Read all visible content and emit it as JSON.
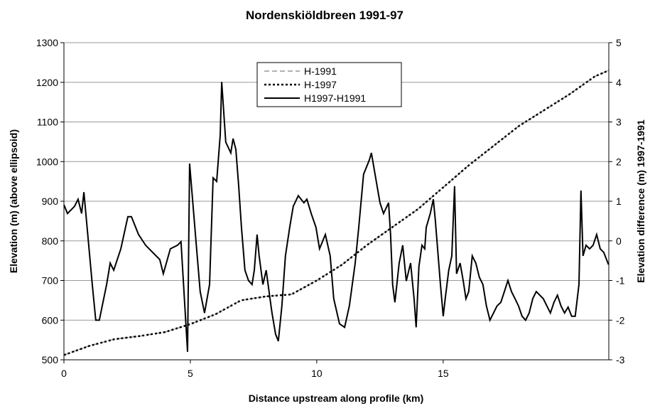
{
  "chart_data": {
    "type": "line",
    "title": "Nordenskiöldbreen 1991-97",
    "x_label": "Distance upstream along profile (km)",
    "y_label": "Elevation (m) (above ellipsoid)",
    "y2_label": "Elevation difference (m) 1997-1991",
    "xlim": [
      0,
      21.55
    ],
    "xticks": [
      0,
      5,
      10,
      15
    ],
    "ylim": [
      500,
      1300
    ],
    "yticks": [
      500,
      600,
      700,
      800,
      900,
      1000,
      1100,
      1200,
      1300
    ],
    "y2lim": [
      -3,
      5
    ],
    "y2ticks": [
      -3,
      -2,
      -1,
      0,
      1,
      2,
      3,
      4,
      5
    ],
    "grid": true,
    "legend": "top-center",
    "series": [
      {
        "name": "H-1991",
        "color": "#999999",
        "dash": "7,4",
        "x": [
          0,
          1,
          2,
          3,
          4,
          5,
          6,
          7,
          8,
          9,
          10,
          11,
          12,
          13,
          14,
          15,
          16,
          17,
          18,
          19,
          20,
          21,
          21.55
        ],
        "values": [
          512,
          535,
          552,
          560,
          570,
          590,
          615,
          650,
          660,
          665,
          700,
          740,
          790,
          835,
          880,
          935,
          990,
          1040,
          1090,
          1130,
          1170,
          1215,
          1230
        ]
      },
      {
        "name": "H-1997",
        "color": "#000000",
        "dash": "3,3",
        "x": [
          0,
          1,
          2,
          3,
          4,
          5,
          6,
          7,
          8,
          9,
          10,
          11,
          12,
          13,
          14,
          15,
          16,
          17,
          18,
          19,
          20,
          21,
          21.55
        ],
        "values": [
          512,
          535,
          552,
          560,
          570,
          590,
          615,
          650,
          660,
          665,
          700,
          740,
          790,
          835,
          880,
          935,
          990,
          1040,
          1090,
          1130,
          1170,
          1215,
          1230
        ]
      },
      {
        "name": "H1997-H1991",
        "color": "#000000",
        "axis": "y2",
        "x": [
          0,
          0.14,
          0.42,
          0.56,
          0.7,
          0.79,
          0.98,
          1.12,
          1.26,
          1.4,
          1.69,
          1.83,
          1.97,
          2.25,
          2.53,
          2.67,
          2.95,
          3.23,
          3.51,
          3.79,
          3.93,
          4.21,
          4.49,
          4.63,
          4.89,
          4.97,
          5.2,
          5.39,
          5.56,
          5.76,
          5.9,
          6.04,
          6.18,
          6.24,
          6.4,
          6.6,
          6.69,
          6.8,
          6.91,
          7.02,
          7.16,
          7.3,
          7.44,
          7.53,
          7.64,
          7.72,
          7.87,
          8.0,
          8.15,
          8.23,
          8.37,
          8.48,
          8.62,
          8.76,
          8.93,
          9.07,
          9.27,
          9.49,
          9.61,
          9.78,
          9.97,
          10.11,
          10.34,
          10.53,
          10.67,
          10.9,
          11.1,
          11.29,
          11.52,
          11.66,
          11.85,
          12.08,
          12.16,
          12.28,
          12.5,
          12.64,
          12.84,
          12.92,
          13.0,
          13.09,
          13.26,
          13.4,
          13.54,
          13.71,
          13.85,
          13.93,
          14.04,
          14.16,
          14.27,
          14.33,
          14.49,
          14.61,
          14.69,
          14.8,
          14.89,
          15.0,
          15.08,
          15.22,
          15.34,
          15.45,
          15.53,
          15.67,
          15.79,
          15.9,
          16.01,
          16.15,
          16.29,
          16.43,
          16.57,
          16.71,
          16.85,
          16.99,
          17.13,
          17.28,
          17.42,
          17.56,
          17.7,
          17.84,
          17.98,
          18.12,
          18.26,
          18.4,
          18.54,
          18.68,
          18.82,
          18.96,
          19.1,
          19.24,
          19.38,
          19.52,
          19.66,
          19.8,
          19.94,
          20.08,
          20.22,
          20.37,
          20.45,
          20.53,
          20.65,
          20.79,
          20.93,
          21.07,
          21.21,
          21.35,
          21.54
        ],
        "values": [
          0.91,
          0.69,
          0.87,
          1.05,
          0.69,
          1.23,
          -0.11,
          -1.1,
          -2.0,
          -2.0,
          -1.1,
          -0.56,
          -0.74,
          -0.2,
          0.61,
          0.61,
          0.16,
          -0.11,
          -0.29,
          -0.47,
          -0.83,
          -0.2,
          -0.11,
          -0.02,
          -2.8,
          1.95,
          0.16,
          -1.28,
          -1.82,
          -1.1,
          1.59,
          1.5,
          2.67,
          4.01,
          2.49,
          2.22,
          2.58,
          2.31,
          1.41,
          0.34,
          -0.74,
          -1.0,
          -1.1,
          -0.74,
          0.16,
          -0.38,
          -1.1,
          -0.74,
          -1.46,
          -1.82,
          -2.35,
          -2.53,
          -1.64,
          -0.38,
          0.34,
          0.87,
          1.14,
          0.96,
          1.05,
          0.69,
          0.34,
          -0.2,
          0.16,
          -0.38,
          -1.46,
          -2.09,
          -2.18,
          -1.64,
          -0.56,
          0.34,
          1.68,
          2.04,
          2.22,
          1.77,
          0.96,
          0.69,
          0.96,
          0.16,
          -1.1,
          -1.55,
          -0.56,
          -0.11,
          -1.01,
          -0.56,
          -1.46,
          -2.18,
          -0.65,
          -0.11,
          -0.2,
          0.34,
          0.69,
          1.05,
          0.52,
          -0.38,
          -1.1,
          -1.9,
          -1.46,
          -0.74,
          -0.38,
          1.38,
          -0.83,
          -0.56,
          -1.0,
          -1.46,
          -1.28,
          -0.38,
          -0.56,
          -0.92,
          -1.1,
          -1.64,
          -2.0,
          -1.82,
          -1.64,
          -1.55,
          -1.28,
          -1.0,
          -1.28,
          -1.46,
          -1.64,
          -1.9,
          -2.0,
          -1.82,
          -1.46,
          -1.28,
          -1.37,
          -1.46,
          -1.64,
          -1.82,
          -1.55,
          -1.37,
          -1.64,
          -1.82,
          -1.67,
          -1.9,
          -1.9,
          -1.1,
          1.27,
          -0.38,
          -0.11,
          -0.2,
          -0.11,
          0.16,
          -0.2,
          -0.29,
          -0.6
        ]
      }
    ]
  }
}
